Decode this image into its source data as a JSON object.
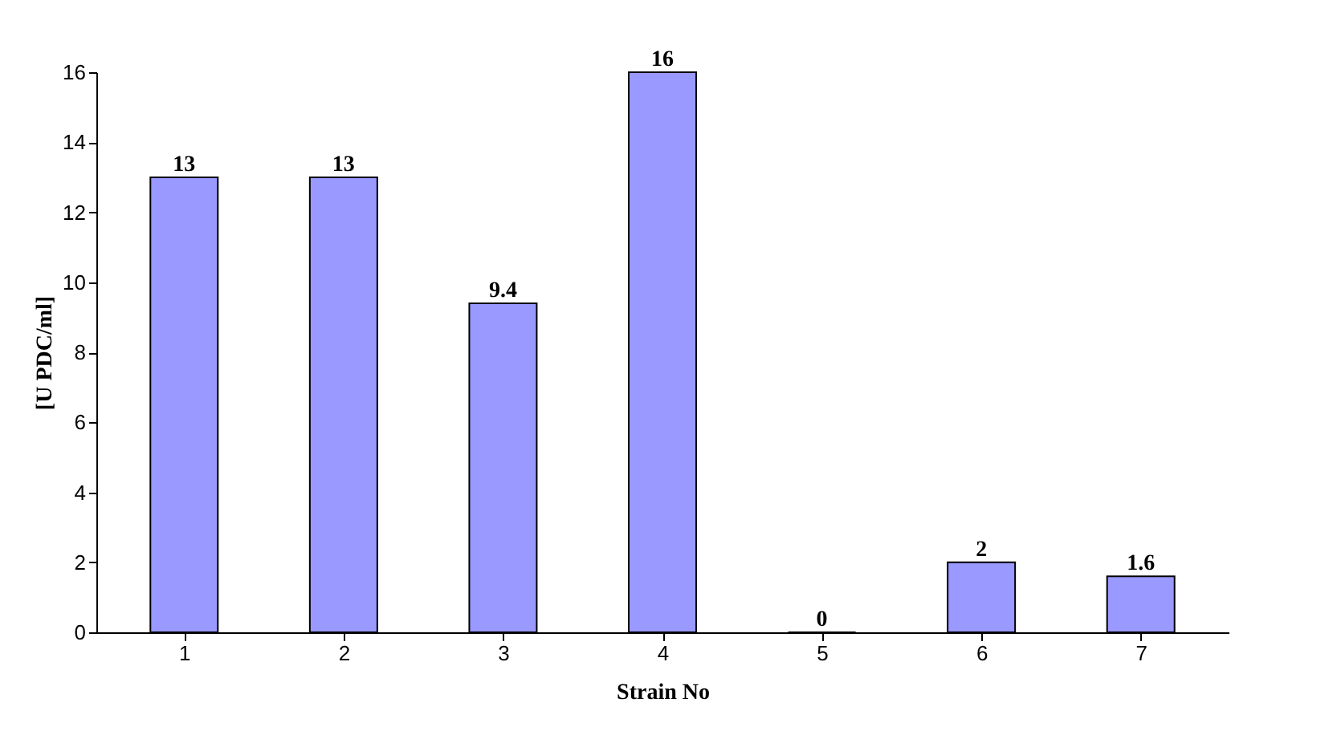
{
  "chart_data": {
    "type": "bar",
    "xlabel": "Strain No",
    "ylabel": "[U PDC/ml]",
    "categories": [
      "1",
      "2",
      "3",
      "4",
      "5",
      "6",
      "7"
    ],
    "values": [
      13,
      13,
      9.4,
      16,
      0,
      2,
      1.6
    ],
    "color": "#9999ff",
    "ylim": [
      0,
      16
    ],
    "yticks": [
      0,
      2,
      4,
      6,
      8,
      10,
      12,
      14,
      16
    ],
    "grid": false,
    "data_labels": true
  }
}
